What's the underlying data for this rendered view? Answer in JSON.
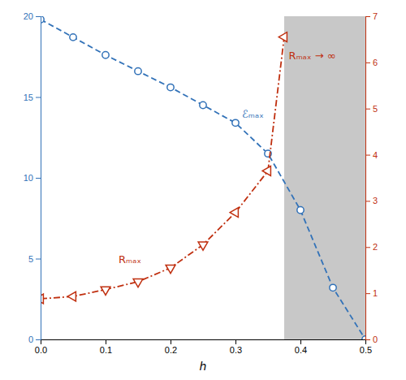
{
  "chart_data": {
    "type": "line",
    "xlabel": "h",
    "xlim": [
      0.0,
      0.5
    ],
    "xticks": [
      {
        "value": 0.0,
        "label": "0.0"
      },
      0.1,
      0.2,
      0.3,
      0.4,
      0.5
    ],
    "ylim": [
      0,
      20
    ],
    "yticks": [
      0,
      5,
      10,
      15,
      20
    ],
    "y2lim": [
      0,
      7
    ],
    "y2ticks": [
      0,
      1,
      2,
      3,
      4,
      5,
      6,
      7
    ],
    "shaded_region": {
      "x": [
        0.375,
        0.5
      ],
      "color": "#c8c8c8"
    },
    "series": [
      {
        "x": [
          0.0,
          0.05,
          0.1,
          0.15,
          0.2,
          0.25,
          0.3,
          0.35,
          0.4,
          0.45,
          0.5
        ],
        "values": [
          19.8,
          18.7,
          17.6,
          16.6,
          15.6,
          14.5,
          13.4,
          11.5,
          8.0,
          3.2,
          0.0
        ],
        "color": "#3272b8",
        "line_style": "dashed",
        "marker": "circle",
        "axis": "y"
      },
      {
        "x": [
          0.0,
          0.05,
          0.1,
          0.15,
          0.2,
          0.25,
          0.3,
          0.35,
          0.375
        ],
        "values": [
          0.88,
          0.93,
          1.08,
          1.25,
          1.55,
          2.05,
          2.75,
          3.65,
          6.55
        ],
        "color": "#c03010",
        "line_style": "dashdot",
        "marker": [
          "triangle-left",
          "triangle-left",
          "triangle-down",
          "triangle-down",
          "triangle-down",
          "triangle-down",
          "triangle-left",
          "triangle-left",
          "triangle-left"
        ],
        "axis": "y2"
      }
    ],
    "annotations": [
      {
        "text": "ℰₘₐₓ",
        "x": 0.31,
        "y": 14.2,
        "color": "#3272b8"
      },
      {
        "text": "Rₘₐₓ",
        "x": 0.12,
        "y": 5.2,
        "color": "#c03010"
      },
      {
        "text": "Rₘₐₓ → ∞",
        "x": 0.382,
        "y": 17.8,
        "color": "#c03010"
      }
    ],
    "grid": false
  }
}
